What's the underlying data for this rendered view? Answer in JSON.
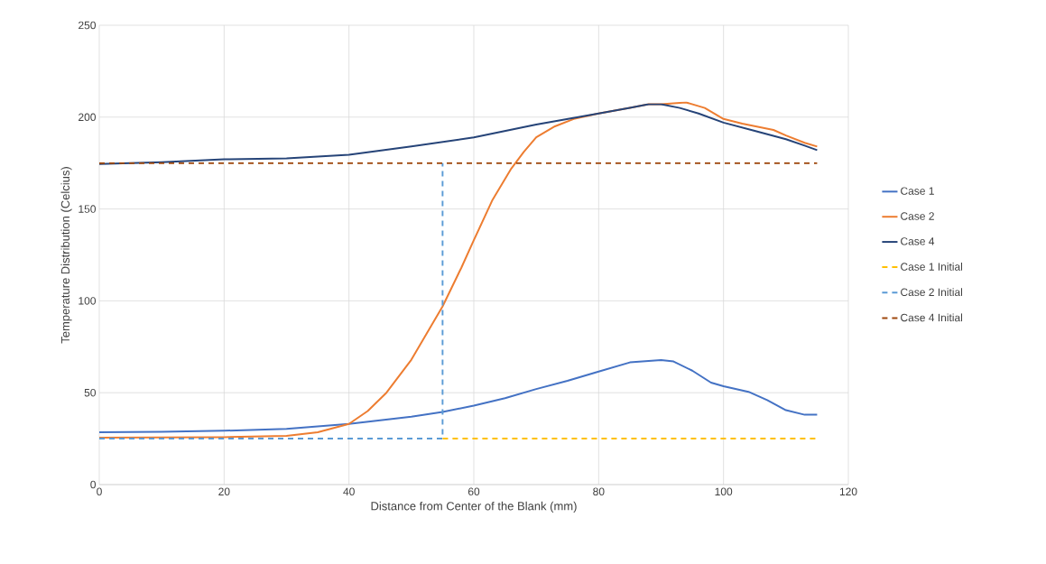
{
  "chart_data": {
    "type": "line",
    "xlabel": "Distance from Center  of the Blank (mm)",
    "ylabel": "Temperature Distribution (Celcius)",
    "xlim": [
      0,
      120
    ],
    "ylim": [
      0,
      250
    ],
    "xticks": [
      0,
      20,
      40,
      60,
      80,
      100,
      120
    ],
    "yticks": [
      0,
      50,
      100,
      150,
      200,
      250
    ],
    "grid": true,
    "legend": "right",
    "series": [
      {
        "name": "Case 1",
        "color": "#4472c4",
        "line_style": "solid",
        "x": [
          0,
          10,
          20,
          30,
          40,
          50,
          55,
          60,
          65,
          70,
          75,
          80,
          85,
          90,
          92,
          95,
          98,
          100,
          104,
          107,
          110,
          113,
          115
        ],
        "values": [
          28.5,
          28.7,
          29.3,
          30.3,
          33,
          37,
          39.5,
          43,
          47,
          52,
          56.5,
          61.5,
          66.5,
          67.8,
          67,
          62,
          55.5,
          53.5,
          50.5,
          46,
          40.5,
          38,
          38
        ]
      },
      {
        "name": "Case 2",
        "color": "#ed7d31",
        "line_style": "solid",
        "x": [
          0,
          20,
          30,
          35,
          40,
          43,
          46,
          50,
          55,
          58,
          60,
          63,
          66,
          68,
          70,
          73,
          76,
          80,
          85,
          88,
          90,
          94,
          97,
          100,
          103,
          108,
          110,
          113,
          115
        ],
        "values": [
          25.5,
          25.8,
          26.5,
          28.5,
          33,
          40,
          50,
          68,
          97,
          118,
          133,
          155,
          172,
          181,
          189,
          195,
          199,
          202,
          205,
          207,
          207,
          208,
          205,
          199,
          196.5,
          193,
          190,
          186,
          184
        ]
      },
      {
        "name": "Case 4",
        "color": "#264478",
        "line_style": "solid",
        "x": [
          0,
          10,
          20,
          30,
          40,
          50,
          60,
          70,
          80,
          85,
          88,
          90,
          93,
          96,
          100,
          105,
          110,
          113,
          115
        ],
        "values": [
          174.5,
          175.5,
          177,
          177.5,
          179.5,
          184,
          189,
          196,
          202,
          205,
          207,
          207,
          205,
          202,
          197,
          192.5,
          188,
          184.5,
          182
        ]
      },
      {
        "name": "Case 1 Initial",
        "color": "#ffc000",
        "line_style": "dashed",
        "x": [
          55,
          115
        ],
        "values": [
          25,
          25
        ]
      },
      {
        "name": "Case 2 Initial",
        "color": "#5b9bd5",
        "line_style": "dashed",
        "x": [
          0,
          55,
          55
        ],
        "values": [
          25,
          25,
          175
        ]
      },
      {
        "name": "Case 4 Initial",
        "color": "#9e480e",
        "line_style": "dashed",
        "x": [
          0,
          115
        ],
        "values": [
          175,
          175
        ]
      }
    ]
  }
}
